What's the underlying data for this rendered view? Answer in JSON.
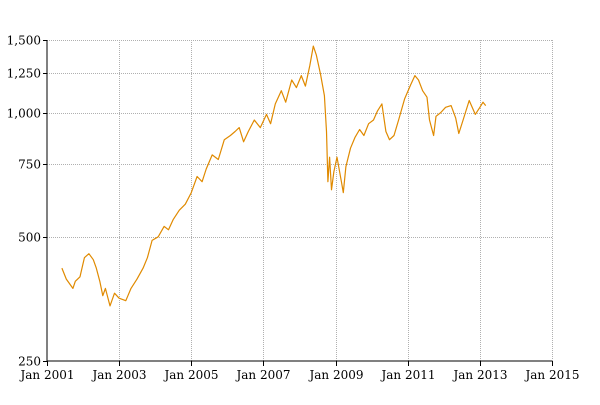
{
  "chart_data": {
    "type": "line",
    "title": "",
    "xlabel": "",
    "ylabel": "",
    "y_scale": "log",
    "grid": true,
    "legend": "none",
    "xlim": [
      "2001-01-01",
      "2015-01-01"
    ],
    "ylim": [
      250,
      1500
    ],
    "x_ticks": [
      {
        "date": "2001-01-01",
        "label": "Jan 2001"
      },
      {
        "date": "2003-01-01",
        "label": "Jan 2003"
      },
      {
        "date": "2005-01-01",
        "label": "Jan 2005"
      },
      {
        "date": "2007-01-01",
        "label": "Jan 2007"
      },
      {
        "date": "2009-01-01",
        "label": "Jan 2009"
      },
      {
        "date": "2011-01-01",
        "label": "Jan 2011"
      },
      {
        "date": "2013-01-01",
        "label": "Jan 2013"
      },
      {
        "date": "2015-01-01",
        "label": "Jan 2015"
      }
    ],
    "y_ticks": [
      {
        "value": 250,
        "label": "250"
      },
      {
        "value": 500,
        "label": "500"
      },
      {
        "value": 750,
        "label": "750"
      },
      {
        "value": 1000,
        "label": "1,000"
      },
      {
        "value": 1250,
        "label": "1,250"
      },
      {
        "value": 1500,
        "label": "1,500"
      }
    ],
    "series": [
      {
        "color": "#E08A00",
        "points": [
          [
            "2001-06-01",
            420
          ],
          [
            "2001-07-15",
            395
          ],
          [
            "2001-09-20",
            375
          ],
          [
            "2001-10-15",
            390
          ],
          [
            "2001-12-01",
            400
          ],
          [
            "2002-01-15",
            445
          ],
          [
            "2002-03-01",
            455
          ],
          [
            "2002-04-15",
            440
          ],
          [
            "2002-05-15",
            420
          ],
          [
            "2002-06-20",
            390
          ],
          [
            "2002-07-20",
            360
          ],
          [
            "2002-08-15",
            375
          ],
          [
            "2002-10-01",
            340
          ],
          [
            "2002-11-15",
            365
          ],
          [
            "2003-01-01",
            355
          ],
          [
            "2003-03-10",
            350
          ],
          [
            "2003-05-01",
            375
          ],
          [
            "2003-07-01",
            395
          ],
          [
            "2003-09-01",
            420
          ],
          [
            "2003-10-15",
            445
          ],
          [
            "2003-12-01",
            490
          ],
          [
            "2004-02-01",
            500
          ],
          [
            "2004-04-01",
            530
          ],
          [
            "2004-05-15",
            520
          ],
          [
            "2004-07-01",
            550
          ],
          [
            "2004-09-01",
            580
          ],
          [
            "2004-11-01",
            600
          ],
          [
            "2005-01-01",
            640
          ],
          [
            "2005-03-01",
            700
          ],
          [
            "2005-04-20",
            680
          ],
          [
            "2005-06-01",
            730
          ],
          [
            "2005-08-01",
            790
          ],
          [
            "2005-10-01",
            770
          ],
          [
            "2005-12-01",
            860
          ],
          [
            "2006-02-01",
            880
          ],
          [
            "2006-03-20",
            900
          ],
          [
            "2006-05-01",
            920
          ],
          [
            "2006-06-15",
            850
          ],
          [
            "2006-08-01",
            900
          ],
          [
            "2006-10-01",
            960
          ],
          [
            "2006-12-01",
            920
          ],
          [
            "2007-02-01",
            990
          ],
          [
            "2007-03-15",
            940
          ],
          [
            "2007-05-01",
            1050
          ],
          [
            "2007-07-01",
            1130
          ],
          [
            "2007-08-15",
            1060
          ],
          [
            "2007-10-15",
            1200
          ],
          [
            "2007-12-01",
            1150
          ],
          [
            "2008-01-20",
            1230
          ],
          [
            "2008-03-01",
            1160
          ],
          [
            "2008-04-15",
            1300
          ],
          [
            "2008-05-20",
            1450
          ],
          [
            "2008-06-20",
            1380
          ],
          [
            "2008-08-01",
            1240
          ],
          [
            "2008-09-10",
            1100
          ],
          [
            "2008-10-01",
            900
          ],
          [
            "2008-10-15",
            680
          ],
          [
            "2008-11-01",
            780
          ],
          [
            "2008-11-20",
            650
          ],
          [
            "2008-12-15",
            720
          ],
          [
            "2009-01-15",
            780
          ],
          [
            "2009-03-01",
            680
          ],
          [
            "2009-03-20",
            640
          ],
          [
            "2009-04-15",
            740
          ],
          [
            "2009-06-01",
            820
          ],
          [
            "2009-07-15",
            870
          ],
          [
            "2009-09-01",
            910
          ],
          [
            "2009-10-15",
            880
          ],
          [
            "2009-12-01",
            940
          ],
          [
            "2010-01-20",
            960
          ],
          [
            "2010-03-01",
            1010
          ],
          [
            "2010-04-15",
            1050
          ],
          [
            "2010-05-25",
            900
          ],
          [
            "2010-07-01",
            860
          ],
          [
            "2010-08-15",
            880
          ],
          [
            "2010-10-01",
            960
          ],
          [
            "2010-12-01",
            1080
          ],
          [
            "2011-02-01",
            1170
          ],
          [
            "2011-03-15",
            1230
          ],
          [
            "2011-04-20",
            1200
          ],
          [
            "2011-06-01",
            1130
          ],
          [
            "2011-07-15",
            1090
          ],
          [
            "2011-08-10",
            960
          ],
          [
            "2011-09-20",
            880
          ],
          [
            "2011-10-15",
            980
          ],
          [
            "2011-12-01",
            1000
          ],
          [
            "2012-01-20",
            1030
          ],
          [
            "2012-03-15",
            1040
          ],
          [
            "2012-05-01",
            970
          ],
          [
            "2012-06-01",
            890
          ],
          [
            "2012-07-15",
            960
          ],
          [
            "2012-09-15",
            1070
          ],
          [
            "2012-11-15",
            990
          ],
          [
            "2013-01-01",
            1030
          ],
          [
            "2013-02-01",
            1060
          ],
          [
            "2013-03-01",
            1040
          ]
        ]
      }
    ]
  }
}
